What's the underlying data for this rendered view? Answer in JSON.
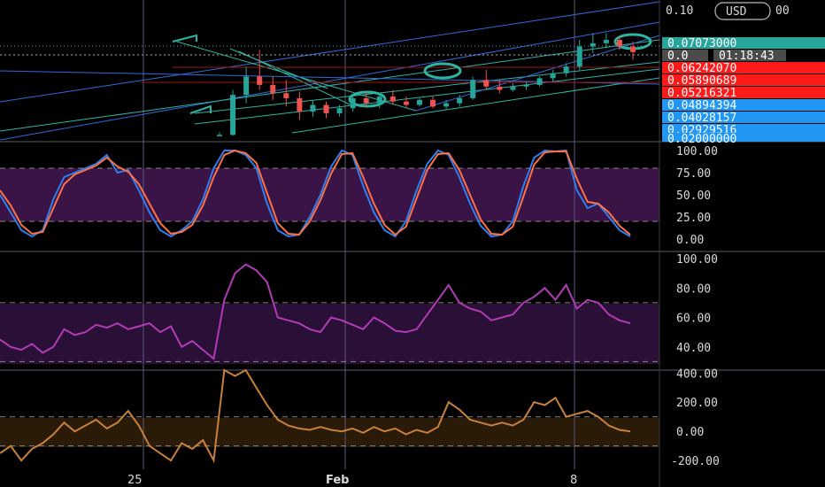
{
  "colors": {
    "background": "#000000",
    "grid": "#4a4a5a",
    "up": "#26a69a",
    "down": "#ef5350",
    "teal": "#2db5a2",
    "blue_line": "#2f6bd8",
    "stoch_k": "#2c7ff0",
    "stoch_d": "#ff7043",
    "stoch_band": "#3a1446",
    "rsi_line": "#b13ab6",
    "rsi_band": "#2a0f36",
    "cci_line": "#c8803a",
    "cci_band": "#2a1a08",
    "badge_teal": "#26a69a",
    "badge_red": "#ff1a1a",
    "badge_blue": "#2196f3",
    "badge_gray": "#4b4b4b"
  },
  "header": {
    "currency_label": "USD",
    "price_top_left": "0.10",
    "price_top_right": "00"
  },
  "price_badges": [
    {
      "label": "0.07073000",
      "kind": "teal"
    },
    {
      "label": "0.0",
      "kind": "gray"
    },
    {
      "label": "01:18:43",
      "kind": "gray"
    },
    {
      "label": "0.06242070",
      "kind": "red"
    },
    {
      "label": "0.05890689",
      "kind": "red"
    },
    {
      "label": "0.05216321",
      "kind": "red"
    },
    {
      "label": "0.04894394",
      "kind": "blue"
    },
    {
      "label": "0.04028157",
      "kind": "blue"
    },
    {
      "label": "0.02929516",
      "kind": "blue"
    },
    {
      "label": "0.02000000",
      "kind": "blue"
    }
  ],
  "x_axis": {
    "labels": [
      "25",
      "Feb",
      "8"
    ]
  },
  "chart_data": [
    {
      "type": "candlestick",
      "pane": "price",
      "series": [
        {
          "open": 0.0205,
          "high": 0.0225,
          "low": 0.02,
          "close": 0.021
        },
        {
          "open": 0.021,
          "high": 0.048,
          "low": 0.0205,
          "close": 0.045
        },
        {
          "open": 0.045,
          "high": 0.062,
          "low": 0.04,
          "close": 0.056
        },
        {
          "open": 0.056,
          "high": 0.072,
          "low": 0.048,
          "close": 0.051
        },
        {
          "open": 0.051,
          "high": 0.056,
          "low": 0.042,
          "close": 0.046
        },
        {
          "open": 0.046,
          "high": 0.054,
          "low": 0.038,
          "close": 0.043
        },
        {
          "open": 0.043,
          "high": 0.047,
          "low": 0.03,
          "close": 0.035
        },
        {
          "open": 0.035,
          "high": 0.042,
          "low": 0.032,
          "close": 0.039
        },
        {
          "open": 0.039,
          "high": 0.041,
          "low": 0.031,
          "close": 0.034
        },
        {
          "open": 0.034,
          "high": 0.039,
          "low": 0.032,
          "close": 0.037
        },
        {
          "open": 0.037,
          "high": 0.045,
          "low": 0.035,
          "close": 0.043
        },
        {
          "open": 0.043,
          "high": 0.047,
          "low": 0.038,
          "close": 0.04
        },
        {
          "open": 0.04,
          "high": 0.046,
          "low": 0.037,
          "close": 0.044
        },
        {
          "open": 0.044,
          "high": 0.048,
          "low": 0.039,
          "close": 0.041
        },
        {
          "open": 0.041,
          "high": 0.044,
          "low": 0.037,
          "close": 0.039
        },
        {
          "open": 0.039,
          "high": 0.043,
          "low": 0.038,
          "close": 0.042
        },
        {
          "open": 0.042,
          "high": 0.044,
          "low": 0.037,
          "close": 0.038
        },
        {
          "open": 0.038,
          "high": 0.042,
          "low": 0.036,
          "close": 0.04
        },
        {
          "open": 0.04,
          "high": 0.045,
          "low": 0.038,
          "close": 0.043
        },
        {
          "open": 0.043,
          "high": 0.056,
          "low": 0.042,
          "close": 0.054
        },
        {
          "open": 0.054,
          "high": 0.06,
          "low": 0.048,
          "close": 0.05
        },
        {
          "open": 0.05,
          "high": 0.054,
          "low": 0.046,
          "close": 0.048
        },
        {
          "open": 0.048,
          "high": 0.052,
          "low": 0.047,
          "close": 0.05
        },
        {
          "open": 0.05,
          "high": 0.053,
          "low": 0.048,
          "close": 0.051
        },
        {
          "open": 0.051,
          "high": 0.056,
          "low": 0.05,
          "close": 0.055
        },
        {
          "open": 0.055,
          "high": 0.06,
          "low": 0.053,
          "close": 0.058
        },
        {
          "open": 0.058,
          "high": 0.064,
          "low": 0.056,
          "close": 0.062
        },
        {
          "open": 0.062,
          "high": 0.078,
          "low": 0.06,
          "close": 0.074
        },
        {
          "open": 0.074,
          "high": 0.082,
          "low": 0.07,
          "close": 0.076
        },
        {
          "open": 0.076,
          "high": 0.082,
          "low": 0.073,
          "close": 0.078
        },
        {
          "open": 0.078,
          "high": 0.08,
          "low": 0.072,
          "close": 0.074
        },
        {
          "open": 0.074,
          "high": 0.077,
          "low": 0.066,
          "close": 0.0707
        }
      ]
    },
    {
      "type": "line",
      "pane": "stochastic",
      "ylim": [
        0,
        100
      ],
      "ticks": [
        "100.00",
        "75.00",
        "50.00",
        "25.00",
        "0.00"
      ],
      "band": [
        20,
        80
      ],
      "series": [
        {
          "values": [
            50,
            30,
            10,
            3,
            10,
            45,
            70,
            75,
            80,
            85,
            95,
            75,
            78,
            55,
            30,
            10,
            3,
            10,
            20,
            45,
            80,
            100,
            100,
            95,
            80,
            40,
            10,
            3,
            5,
            25,
            50,
            82,
            100,
            95,
            60,
            30,
            10,
            3,
            20,
            55,
            85,
            100,
            95,
            70,
            40,
            15,
            3,
            5,
            20,
            60,
            92,
            100,
            99,
            100,
            55,
            35,
            40,
            25,
            10,
            3
          ]
        },
        {
          "values": [
            55,
            38,
            16,
            6,
            8,
            35,
            62,
            73,
            78,
            83,
            92,
            82,
            76,
            62,
            40,
            18,
            6,
            8,
            16,
            38,
            70,
            95,
            100,
            97,
            86,
            52,
            18,
            6,
            5,
            20,
            44,
            74,
            96,
            97,
            70,
            40,
            16,
            5,
            14,
            46,
            78,
            96,
            97,
            78,
            50,
            22,
            6,
            5,
            14,
            48,
            84,
            98,
            99,
            99,
            68,
            42,
            40,
            30,
            15,
            5
          ]
        }
      ]
    },
    {
      "type": "line",
      "pane": "rsi",
      "ylim": [
        20,
        100
      ],
      "ticks": [
        "100.00",
        "80.00",
        "60.00",
        "40.00"
      ],
      "band": [
        30,
        70
      ],
      "series": [
        {
          "values": [
            45,
            40,
            38,
            42,
            36,
            40,
            52,
            48,
            50,
            55,
            53,
            56,
            52,
            54,
            56,
            50,
            54,
            40,
            44,
            38,
            32,
            72,
            90,
            96,
            92,
            84,
            60,
            58,
            56,
            52,
            50,
            60,
            58,
            55,
            52,
            60,
            56,
            51,
            50,
            52,
            62,
            72,
            82,
            70,
            66,
            64,
            58,
            60,
            62,
            70,
            74,
            80,
            72,
            82,
            66,
            72,
            70,
            62,
            58,
            56
          ]
        }
      ]
    },
    {
      "type": "line",
      "pane": "cci",
      "ylim": [
        -260,
        420
      ],
      "ticks": [
        "400.00",
        "200.00",
        "0.00",
        "-200.00"
      ],
      "band": [
        -100,
        100
      ],
      "series": [
        {
          "values": [
            -150,
            -100,
            -200,
            -120,
            -80,
            -20,
            60,
            0,
            40,
            80,
            20,
            60,
            140,
            40,
            -100,
            -150,
            -200,
            -80,
            -120,
            -60,
            -200,
            420,
            380,
            420,
            300,
            180,
            80,
            40,
            20,
            10,
            30,
            10,
            0,
            20,
            -10,
            30,
            0,
            20,
            -20,
            10,
            -10,
            30,
            200,
            150,
            80,
            60,
            40,
            60,
            40,
            80,
            200,
            180,
            230,
            100,
            120,
            140,
            100,
            40,
            10,
            0
          ]
        }
      ]
    }
  ]
}
